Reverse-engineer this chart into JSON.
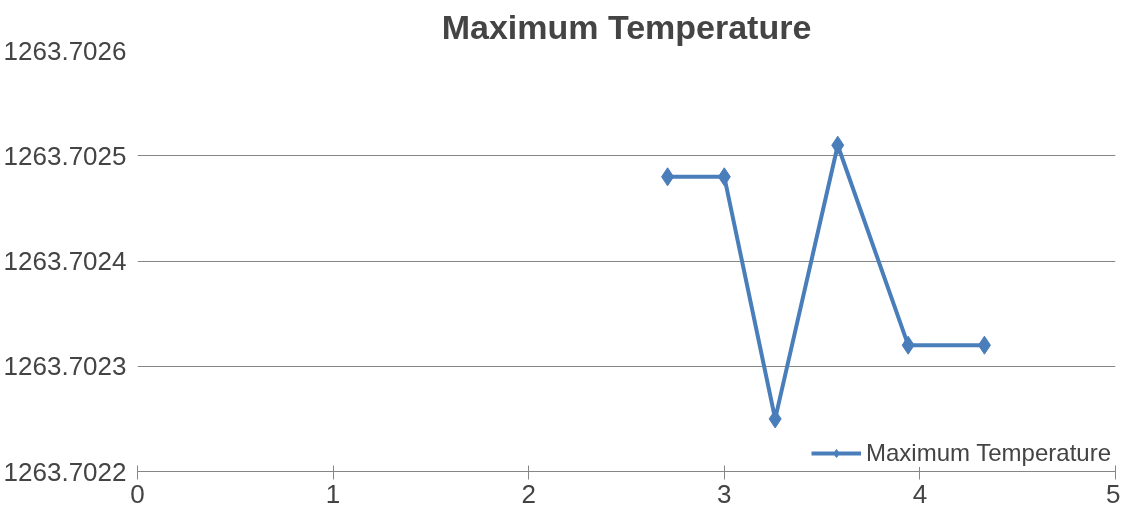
{
  "chart_data": {
    "type": "line",
    "title": "Maximum Temperature",
    "x": [
      2.71,
      3.0,
      3.26,
      3.58,
      3.94,
      4.33
    ],
    "series": [
      {
        "name": "Maximum Temperature",
        "color": "#4a7ebb",
        "values": [
          1263.70248,
          1263.70248,
          1263.70225,
          1263.70251,
          1263.70232,
          1263.70232
        ]
      }
    ],
    "xlim": [
      0,
      5
    ],
    "xticks": [
      0,
      1,
      2,
      3,
      4,
      5
    ],
    "ylim": [
      1263.7022,
      1263.7026
    ],
    "yticks": [
      1263.7022,
      1263.7023,
      1263.7024,
      1263.7025,
      1263.7026
    ],
    "grid": "y",
    "legend": "right",
    "marker": "diamond",
    "line_style": "solid"
  }
}
